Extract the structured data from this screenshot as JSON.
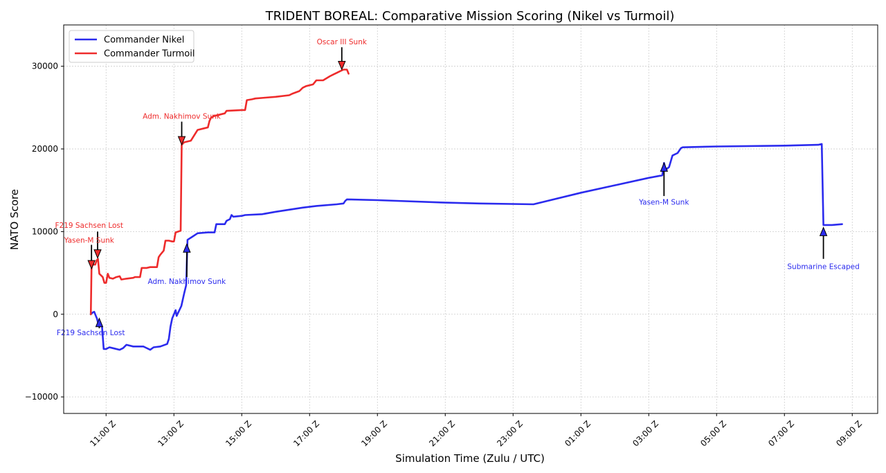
{
  "chart_data": {
    "type": "line",
    "title": "TRIDENT BOREAL: Comparative Mission Scoring (Nikel vs Turmoil)",
    "xlabel": "Simulation Time (Zulu / UTC)",
    "ylabel": "NATO Score",
    "xlim": [
      9.75,
      33.75
    ],
    "ylim": [
      -12000,
      35000
    ],
    "grid": true,
    "legend_position": "top-left",
    "x_units": "hours since 00:00 Z of day 1 (values above 24 wrap to next day)",
    "x_ticks": [
      {
        "value": 11,
        "label": "11:00 Z"
      },
      {
        "value": 13,
        "label": "13:00 Z"
      },
      {
        "value": 15,
        "label": "15:00 Z"
      },
      {
        "value": 17,
        "label": "17:00 Z"
      },
      {
        "value": 19,
        "label": "19:00 Z"
      },
      {
        "value": 21,
        "label": "21:00 Z"
      },
      {
        "value": 23,
        "label": "23:00 Z"
      },
      {
        "value": 25,
        "label": "01:00 Z"
      },
      {
        "value": 27,
        "label": "03:00 Z"
      },
      {
        "value": 29,
        "label": "05:00 Z"
      },
      {
        "value": 31,
        "label": "07:00 Z"
      },
      {
        "value": 33,
        "label": "09:00 Z"
      }
    ],
    "y_ticks": [
      {
        "value": -10000,
        "label": "−10000"
      },
      {
        "value": 0,
        "label": "0"
      },
      {
        "value": 10000,
        "label": "10000"
      },
      {
        "value": 20000,
        "label": "20000"
      },
      {
        "value": 30000,
        "label": "30000"
      }
    ],
    "series": [
      {
        "name": "Commander Nikel",
        "color": "#2b2bee",
        "points": [
          [
            10.55,
            0
          ],
          [
            10.6,
            200
          ],
          [
            10.65,
            300
          ],
          [
            10.7,
            -200
          ],
          [
            10.73,
            -500
          ],
          [
            10.76,
            -1000
          ],
          [
            10.8,
            -1300
          ],
          [
            10.88,
            -1500
          ],
          [
            10.93,
            -4200
          ],
          [
            11.0,
            -4200
          ],
          [
            11.1,
            -4000
          ],
          [
            11.2,
            -4100
          ],
          [
            11.4,
            -4300
          ],
          [
            11.5,
            -4100
          ],
          [
            11.6,
            -3700
          ],
          [
            11.8,
            -3900
          ],
          [
            12.1,
            -3900
          ],
          [
            12.15,
            -4000
          ],
          [
            12.3,
            -4300
          ],
          [
            12.4,
            -4000
          ],
          [
            12.6,
            -3900
          ],
          [
            12.8,
            -3600
          ],
          [
            12.85,
            -3000
          ],
          [
            12.9,
            -1500
          ],
          [
            12.95,
            -500
          ],
          [
            13.0,
            0
          ],
          [
            13.05,
            500
          ],
          [
            13.08,
            -200
          ],
          [
            13.15,
            400
          ],
          [
            13.22,
            1000
          ],
          [
            13.3,
            2500
          ],
          [
            13.36,
            3500
          ],
          [
            13.4,
            9000
          ],
          [
            13.55,
            9400
          ],
          [
            13.7,
            9800
          ],
          [
            14.0,
            9900
          ],
          [
            14.2,
            9900
          ],
          [
            14.25,
            10900
          ],
          [
            14.5,
            10900
          ],
          [
            14.55,
            11300
          ],
          [
            14.65,
            11500
          ],
          [
            14.7,
            12000
          ],
          [
            14.75,
            11800
          ],
          [
            15.0,
            11900
          ],
          [
            15.1,
            12000
          ],
          [
            15.6,
            12100
          ],
          [
            16.0,
            12400
          ],
          [
            16.8,
            12900
          ],
          [
            17.2,
            13100
          ],
          [
            17.8,
            13300
          ],
          [
            18.0,
            13400
          ],
          [
            18.05,
            13700
          ],
          [
            18.1,
            13900
          ],
          [
            19.0,
            13800
          ],
          [
            21.0,
            13500
          ],
          [
            22.0,
            13400
          ],
          [
            23.6,
            13300
          ],
          [
            25.0,
            14700
          ],
          [
            27.0,
            16500
          ],
          [
            27.4,
            16800
          ],
          [
            27.45,
            18300
          ],
          [
            27.5,
            17500
          ],
          [
            27.6,
            17800
          ],
          [
            27.7,
            19200
          ],
          [
            27.85,
            19500
          ],
          [
            27.95,
            20100
          ],
          [
            28.0,
            20200
          ],
          [
            29.0,
            20300
          ],
          [
            31.0,
            20400
          ],
          [
            32.0,
            20500
          ],
          [
            32.1,
            20600
          ],
          [
            32.15,
            10800
          ],
          [
            32.4,
            10800
          ],
          [
            32.7,
            10900
          ]
        ]
      },
      {
        "name": "Commander Turmoil",
        "color": "#ee2b2b",
        "points": [
          [
            10.55,
            0
          ],
          [
            10.57,
            5500
          ],
          [
            10.6,
            6000
          ],
          [
            10.68,
            6000
          ],
          [
            10.72,
            6500
          ],
          [
            10.76,
            6700
          ],
          [
            10.8,
            4900
          ],
          [
            10.9,
            4500
          ],
          [
            10.95,
            3800
          ],
          [
            11.0,
            3800
          ],
          [
            11.05,
            4900
          ],
          [
            11.1,
            4400
          ],
          [
            11.2,
            4300
          ],
          [
            11.3,
            4500
          ],
          [
            11.4,
            4600
          ],
          [
            11.45,
            4200
          ],
          [
            11.6,
            4300
          ],
          [
            11.8,
            4400
          ],
          [
            11.85,
            4500
          ],
          [
            12.0,
            4500
          ],
          [
            12.05,
            5600
          ],
          [
            12.2,
            5600
          ],
          [
            12.3,
            5700
          ],
          [
            12.5,
            5700
          ],
          [
            12.55,
            6900
          ],
          [
            12.6,
            7200
          ],
          [
            12.7,
            7700
          ],
          [
            12.75,
            8900
          ],
          [
            12.85,
            8900
          ],
          [
            12.95,
            8800
          ],
          [
            13.0,
            8800
          ],
          [
            13.05,
            9900
          ],
          [
            13.2,
            10100
          ],
          [
            13.23,
            20500
          ],
          [
            13.3,
            20800
          ],
          [
            13.5,
            21000
          ],
          [
            13.7,
            22300
          ],
          [
            13.9,
            22500
          ],
          [
            14.0,
            22600
          ],
          [
            14.05,
            23400
          ],
          [
            14.1,
            23800
          ],
          [
            14.2,
            24000
          ],
          [
            14.5,
            24300
          ],
          [
            14.55,
            24600
          ],
          [
            15.0,
            24700
          ],
          [
            15.1,
            24700
          ],
          [
            15.15,
            25900
          ],
          [
            15.3,
            26000
          ],
          [
            15.4,
            26100
          ],
          [
            15.7,
            26200
          ],
          [
            16.0,
            26300
          ],
          [
            16.4,
            26500
          ],
          [
            16.5,
            26700
          ],
          [
            16.7,
            27000
          ],
          [
            16.8,
            27400
          ],
          [
            16.9,
            27600
          ],
          [
            17.1,
            27800
          ],
          [
            17.2,
            28300
          ],
          [
            17.4,
            28300
          ],
          [
            17.6,
            28800
          ],
          [
            17.7,
            29000
          ],
          [
            17.8,
            29200
          ],
          [
            17.9,
            29400
          ],
          [
            18.0,
            29600
          ],
          [
            18.1,
            29600
          ],
          [
            18.15,
            29100
          ]
        ]
      }
    ],
    "annotations": [
      {
        "text": "Oscar III Sunk",
        "series": "Commander Turmoil",
        "x": 17.95,
        "y": 29600,
        "text_y": 33000,
        "text_x": 17.95,
        "arrow_from_y": 32300
      },
      {
        "text": "Adm. Nakhimov Sunk",
        "series": "Commander Turmoil",
        "x": 13.23,
        "y": 20500,
        "text_x": 13.23,
        "text_y": 24000,
        "arrow_from_y": 23300
      },
      {
        "text": "F219 Sachsen Lost",
        "series": "Commander Turmoil",
        "x": 10.75,
        "y": 6800,
        "text_x": 10.5,
        "text_y": 10800,
        "arrow_from_y": 10000
      },
      {
        "text": "Yasen-M Sunk",
        "series": "Commander Turmoil",
        "x": 10.57,
        "y": 5500,
        "text_x": 10.5,
        "text_y": 9000,
        "arrow_from_y": 8400
      },
      {
        "text": "Adm. Nakhimov Sunk",
        "series": "Commander Nikel",
        "x": 13.38,
        "y": 8500,
        "text_x": 13.38,
        "text_y": 4000,
        "arrow_from_y": 4500
      },
      {
        "text": "F219 Sachsen Lost",
        "series": "Commander Nikel",
        "x": 10.8,
        "y": -500,
        "text_x": 10.55,
        "text_y": -2200,
        "arrow_from_y": -1700
      },
      {
        "text": "Yasen-M Sunk",
        "series": "Commander Nikel",
        "x": 27.45,
        "y": 18300,
        "text_x": 27.45,
        "text_y": 13600,
        "arrow_from_y": 14300
      },
      {
        "text": "Submarine Escaped",
        "series": "Commander Nikel",
        "x": 32.15,
        "y": 10500,
        "text_x": 32.15,
        "text_y": 5800,
        "arrow_from_y": 6700
      }
    ]
  }
}
